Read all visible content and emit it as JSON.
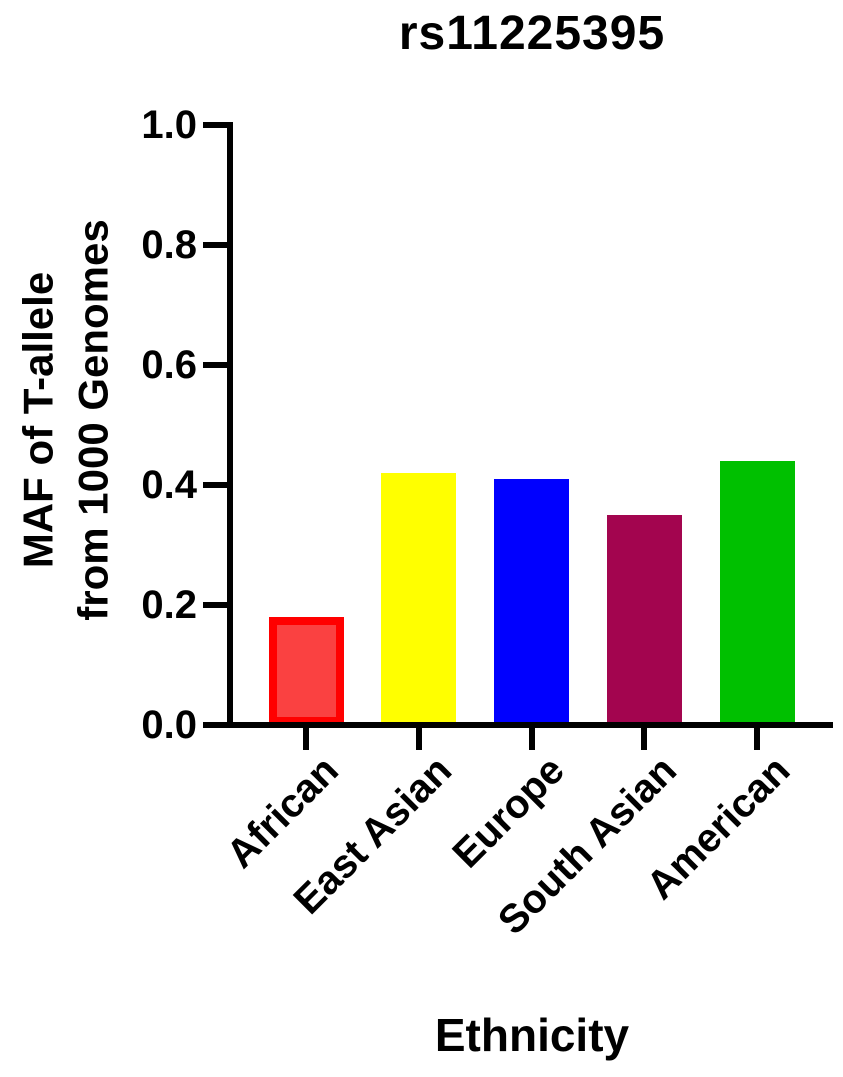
{
  "title": "rs11225395",
  "chart_data": {
    "type": "bar",
    "title": "rs11225395",
    "xlabel": "Ethnicity",
    "ylabel": "MAF of T-allele from 1000 Genomes",
    "ylabel_lines": [
      "MAF of T-allele",
      "from 1000 Genomes"
    ],
    "categories": [
      "African",
      "East Asian",
      "Europe",
      "South Asian",
      "American"
    ],
    "values": [
      0.18,
      0.42,
      0.41,
      0.35,
      0.44
    ],
    "bar_fill_colors": [
      "#FA4141",
      "#FFFF00",
      "#0000FF",
      "#A3054F",
      "#00C000"
    ],
    "bar_border_colors": [
      "#FF0000",
      "#FFFF00",
      "#0000FF",
      "#A3054F",
      "#00C000"
    ],
    "ylim": [
      0,
      1
    ],
    "ytick_labels": [
      "1.0",
      "0.8",
      "0.6",
      "0.4",
      "0.2",
      "0.0"
    ],
    "ytick_values": [
      1.0,
      0.8,
      0.6,
      0.4,
      0.2,
      0.0
    ],
    "grid": false,
    "legend": "none",
    "axis_color": "#000000",
    "text_color": "#000000",
    "background_color": "#FFFFFF"
  }
}
